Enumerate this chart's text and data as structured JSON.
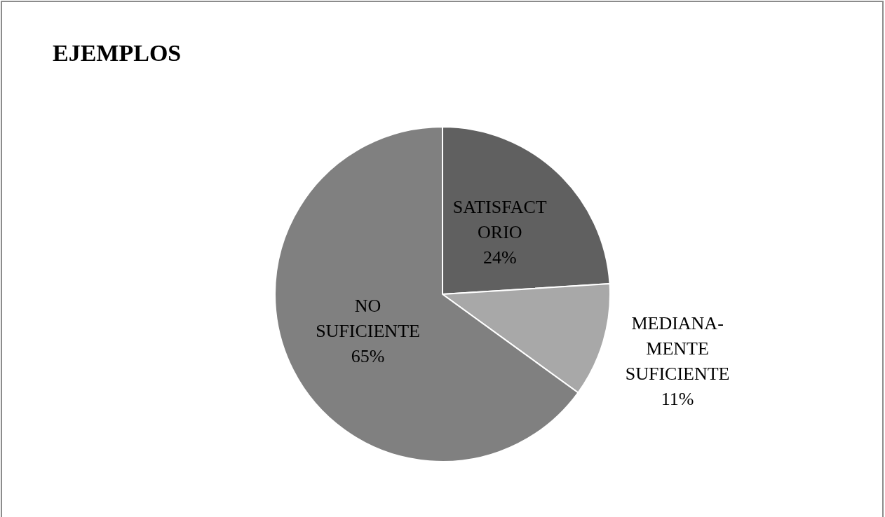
{
  "chart_data": {
    "type": "pie",
    "title": "EJEMPLOS",
    "categories": [
      "SATISFACTORIO",
      "MEDIANA-MENTE SUFICIENTE",
      "NO SUFICIENTE"
    ],
    "values": [
      24,
      11,
      65
    ],
    "colors": [
      "#606060",
      "#a8a8a8",
      "#808080"
    ],
    "value_labels": [
      "24%",
      "11%",
      "65%"
    ],
    "legend": false
  }
}
